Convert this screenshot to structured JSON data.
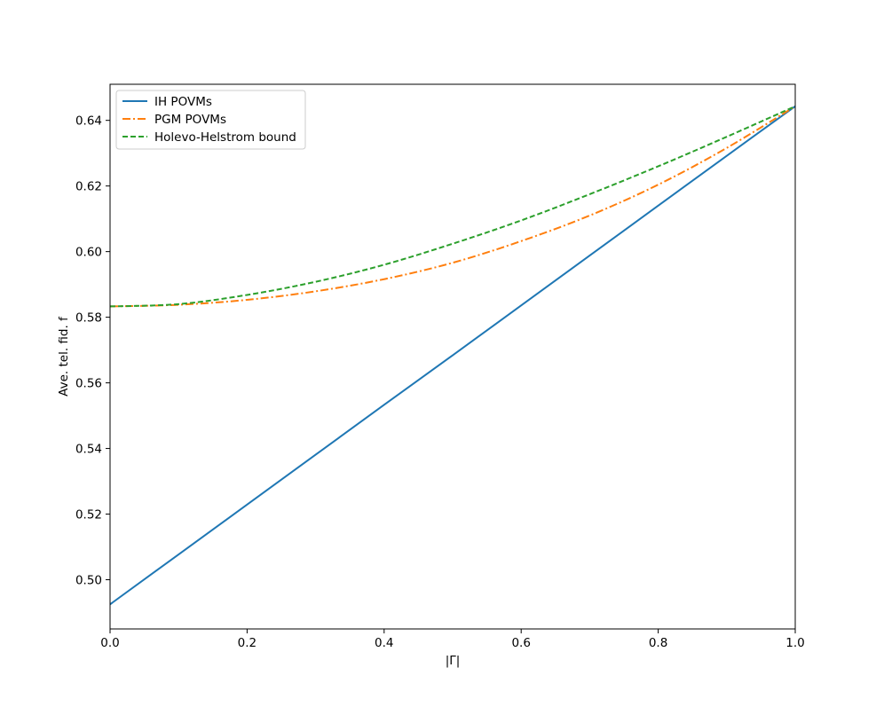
{
  "chart_data": {
    "type": "line",
    "title": "",
    "xlabel": "|Γ|",
    "ylabel": "Ave. tel. fid. f",
    "xlim": [
      0.0,
      1.0
    ],
    "ylim": [
      0.485,
      0.651
    ],
    "xticks": [
      0.0,
      0.2,
      0.4,
      0.6,
      0.8,
      1.0
    ],
    "xtick_labels": [
      "0.0",
      "0.2",
      "0.4",
      "0.6",
      "0.8",
      "1.0"
    ],
    "yticks": [
      0.5,
      0.52,
      0.54,
      0.56,
      0.58,
      0.6,
      0.62,
      0.64
    ],
    "ytick_labels": [
      "0.50",
      "0.52",
      "0.54",
      "0.56",
      "0.58",
      "0.60",
      "0.62",
      "0.64"
    ],
    "grid": false,
    "legend_position": "top-left",
    "x": [
      0.0,
      0.1,
      0.2,
      0.3,
      0.4,
      0.5,
      0.6,
      0.7,
      0.8,
      0.9,
      1.0
    ],
    "series": [
      {
        "name": "IH POVMs",
        "color": "#1f77b4",
        "linestyle": "solid",
        "values": [
          0.4925,
          0.5077,
          0.5229,
          0.5381,
          0.5533,
          0.5684,
          0.5836,
          0.5988,
          0.614,
          0.6292,
          0.6443
        ]
      },
      {
        "name": "PGM POVMs",
        "color": "#ff7f0e",
        "linestyle": "dashdot",
        "values": [
          0.5833,
          0.5838,
          0.5853,
          0.5879,
          0.5916,
          0.5966,
          0.6032,
          0.611,
          0.6204,
          0.6316,
          0.6443
        ]
      },
      {
        "name": "Holevo-Helstrom bound",
        "color": "#2ca02c",
        "linestyle": "dashed",
        "values": [
          0.5833,
          0.584,
          0.5868,
          0.5908,
          0.596,
          0.6024,
          0.6095,
          0.6175,
          0.626,
          0.635,
          0.6443
        ]
      }
    ]
  }
}
